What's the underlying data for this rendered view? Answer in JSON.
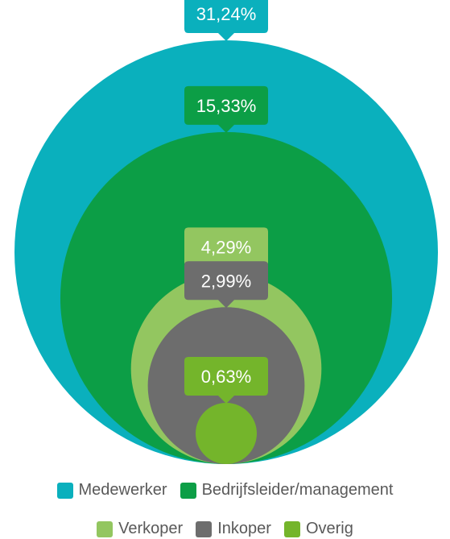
{
  "chart_data": {
    "type": "nested-circles",
    "title": "",
    "series": [
      {
        "name": "Medewerker",
        "value": 31.24,
        "label": "31,24%",
        "color": "#0ab0bd"
      },
      {
        "name": "Bedrijfsleider/management",
        "value": 15.33,
        "label": "15,33%",
        "color": "#0c9e46"
      },
      {
        "name": "Verkoper",
        "value": 4.29,
        "label": "4,29%",
        "color": "#93c660"
      },
      {
        "name": "Inkoper",
        "value": 2.99,
        "label": "2,99%",
        "color": "#6d6d6d"
      },
      {
        "name": "Overig",
        "value": 0.63,
        "label": "0,63%",
        "color": "#74b52b"
      }
    ],
    "legend": {
      "placement": "bottom",
      "rows": [
        [
          "Medewerker",
          "Bedrijfsleider/management"
        ],
        [
          "Verkoper",
          "Inkoper",
          "Overig"
        ]
      ]
    }
  }
}
